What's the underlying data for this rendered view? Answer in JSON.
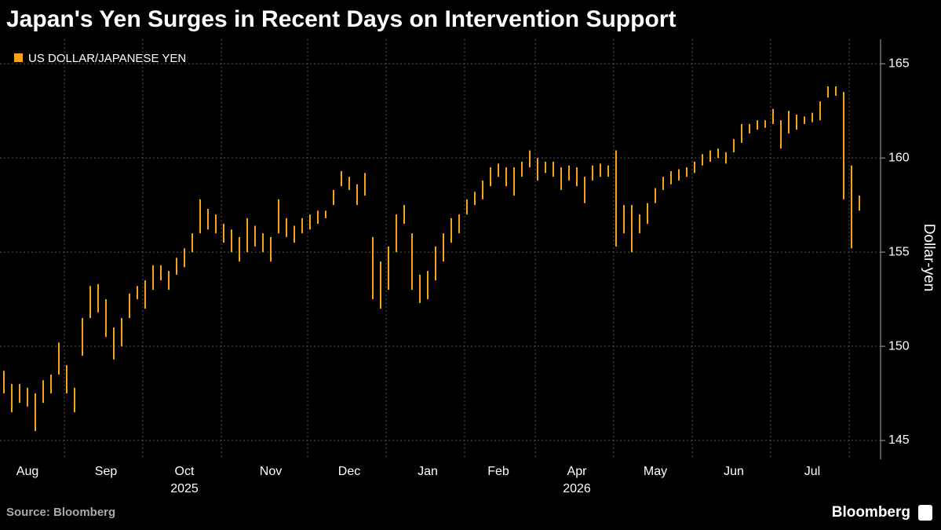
{
  "chart_data": {
    "type": "range",
    "title": "Japan's Yen Surges in Recent Days on Intervention Support",
    "y_axis_label": "Dollar-yen",
    "source": "Source: Bloomberg",
    "brand": "Bloomberg",
    "years": [
      {
        "label": "2025",
        "at": "Oct"
      },
      {
        "label": "2026",
        "at": "Apr"
      }
    ],
    "categories": [
      null,
      null,
      null,
      "Aug",
      null,
      null,
      null,
      null,
      null,
      null,
      null,
      null,
      null,
      "Sep",
      null,
      null,
      null,
      null,
      null,
      null,
      null,
      null,
      null,
      "Oct",
      null,
      null,
      null,
      null,
      null,
      null,
      null,
      null,
      null,
      null,
      "Nov",
      null,
      null,
      null,
      null,
      null,
      null,
      null,
      null,
      null,
      "Dec",
      null,
      null,
      null,
      null,
      null,
      null,
      null,
      null,
      null,
      "Jan",
      null,
      null,
      null,
      null,
      null,
      null,
      null,
      null,
      "Feb",
      null,
      null,
      null,
      null,
      null,
      null,
      null,
      null,
      null,
      "Apr",
      null,
      null,
      null,
      null,
      null,
      null,
      null,
      null,
      null,
      "May",
      null,
      null,
      null,
      null,
      null,
      null,
      null,
      null,
      null,
      "Jun",
      null,
      null,
      null,
      null,
      null,
      null,
      null,
      null,
      null,
      "Jul",
      null,
      null,
      null,
      null,
      null,
      null
    ],
    "series": [
      {
        "name": "US DOLLAR/JAPANESE YEN",
        "color": "#f7a21b",
        "low": [
          147.5,
          146.5,
          147,
          146.8,
          145.5,
          147,
          147.5,
          148.5,
          147.5,
          146.5,
          149.5,
          151.5,
          151.8,
          150.5,
          149.3,
          150,
          151.5,
          152.5,
          152,
          153,
          153.5,
          153,
          153.8,
          154.2,
          155,
          156,
          156.2,
          156,
          155.5,
          155,
          154.5,
          155,
          155.3,
          155,
          154.5,
          156,
          155.8,
          155.5,
          156,
          156.2,
          156.5,
          156.8,
          157.5,
          158.5,
          158.3,
          157.5,
          158,
          152.5,
          152,
          153,
          155,
          156.5,
          153,
          152.3,
          152.5,
          153.5,
          154.5,
          155.5,
          156,
          157,
          157.5,
          157.8,
          158.5,
          159,
          158.5,
          158,
          159,
          159.5,
          158.8,
          159.2,
          159,
          158.3,
          158.8,
          158.5,
          157.6,
          158.8,
          159,
          159,
          155.3,
          156,
          155,
          156,
          156.5,
          157.6,
          158.3,
          158.6,
          158.8,
          159,
          159.2,
          159.6,
          159.8,
          160,
          159.7,
          160.3,
          160.8,
          161.3,
          161.5,
          161.6,
          161.8,
          160.5,
          161.3,
          161.5,
          161.8,
          161.9,
          162,
          163.2,
          163.3,
          157.8,
          155.2,
          157.2
        ],
        "high": [
          148.7,
          148,
          148,
          147.8,
          147.5,
          148.2,
          148.5,
          150.2,
          149,
          147.8,
          151.5,
          153.2,
          153.3,
          152.5,
          151,
          151.5,
          152.8,
          153.2,
          153.5,
          154.3,
          154.3,
          154,
          154.7,
          155.2,
          156,
          157.8,
          157.3,
          157,
          156.5,
          156.2,
          155.8,
          156.8,
          156.4,
          156,
          155.8,
          157.8,
          156.8,
          156.4,
          156.8,
          157,
          157.2,
          157.2,
          158.3,
          159.3,
          159,
          158.6,
          159.2,
          155.8,
          154.5,
          155.3,
          157,
          157.5,
          156,
          153.8,
          154,
          155.3,
          156,
          156.8,
          157,
          157.8,
          158.2,
          158.8,
          159.5,
          159.7,
          159.5,
          159.5,
          159.8,
          160.4,
          160,
          159.8,
          159.8,
          159.5,
          159.6,
          159.5,
          159,
          159.6,
          159.7,
          159.6,
          160.4,
          157.5,
          157.5,
          157,
          157.6,
          158.4,
          159,
          159.3,
          159.4,
          159.5,
          159.8,
          160.2,
          160.4,
          160.5,
          160.3,
          161,
          161.8,
          161.8,
          162,
          162,
          162.6,
          162,
          162.5,
          162.3,
          162.2,
          162.4,
          163,
          163.8,
          163.8,
          163.5,
          159.6,
          158
        ]
      }
    ],
    "ylim": [
      144,
      166.3
    ],
    "yticks": [
      145,
      150,
      155,
      160,
      165
    ],
    "grid": true
  }
}
